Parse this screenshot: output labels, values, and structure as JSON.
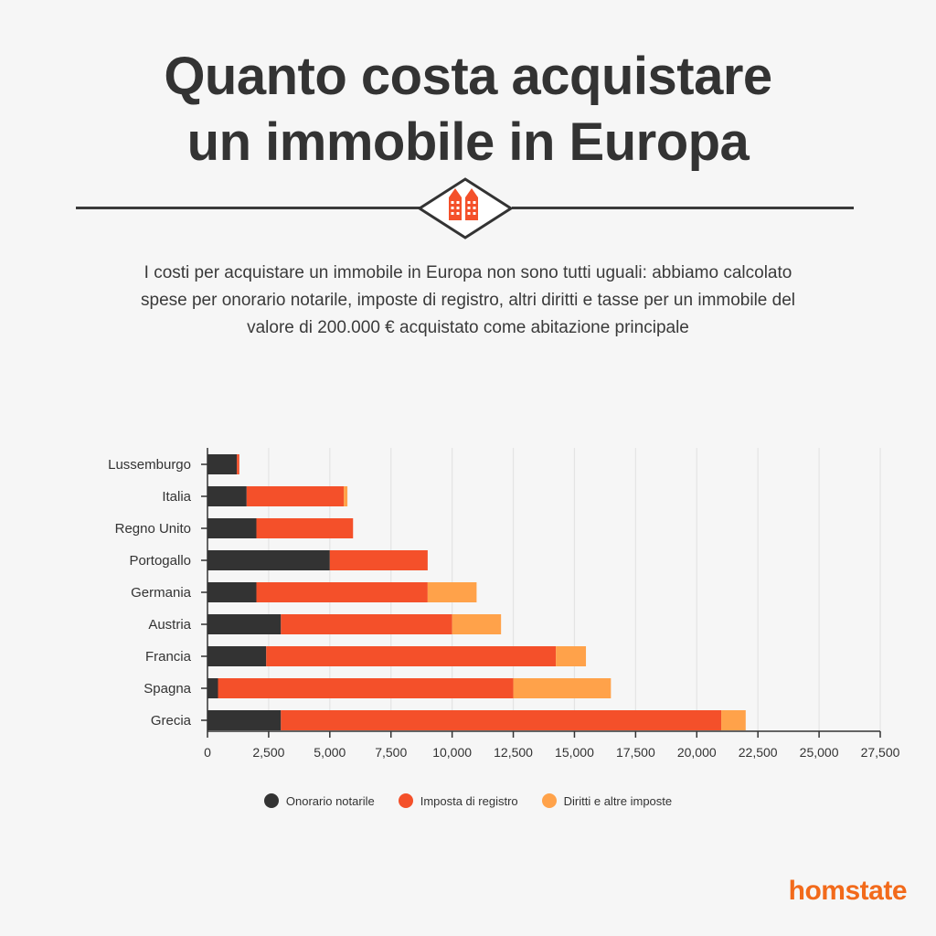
{
  "header": {
    "title_line1": "Quanto costa acquistare",
    "title_line2": "un immobile in Europa",
    "icon": "buildings-icon",
    "subtitle_line1": "I costi per acquistare un immobile in Europa non sono tutti uguali: abbiamo calcolato",
    "subtitle_line2": "spese per onorario notarile,  imposte  di registro, altri diritti e tasse per un immobile del",
    "subtitle_line3": "valore di 200.000 € acquistato come abitazione principale"
  },
  "colors": {
    "background": "#f6f6f6",
    "text": "#333333",
    "notary": "#333333",
    "registry": "#f4502a",
    "other": "#ffa24a",
    "brand": "#f26a1b",
    "grid": "#e4e4e4"
  },
  "chart_data": {
    "type": "bar",
    "orientation": "horizontal",
    "stacked": true,
    "categories": [
      "Lussemburgo",
      "Italia",
      "Regno Unito",
      "Portogallo",
      "Germania",
      "Austria",
      "Francia",
      "Spagna",
      "Grecia"
    ],
    "series": [
      {
        "name": "Onorario notarile",
        "values": [
          1200,
          1600,
          2000,
          5000,
          2000,
          3000,
          2400,
          430,
          3000
        ]
      },
      {
        "name": "Imposta di registro",
        "values": [
          100,
          3970,
          3950,
          4000,
          7000,
          7000,
          11840,
          12070,
          18000
        ]
      },
      {
        "name": "Diritti e altre imposte",
        "values": [
          0,
          150,
          0,
          0,
          2000,
          2000,
          1230,
          3990,
          1000
        ]
      }
    ],
    "xlim": [
      0,
      27500
    ],
    "xticks": [
      0,
      2500,
      5000,
      7500,
      10000,
      12500,
      15000,
      17500,
      20000,
      22500,
      25000,
      27500
    ],
    "xtick_labels": [
      "0",
      "2,500",
      "5,000",
      "7,500",
      "10,000",
      "12,500",
      "15,000",
      "17,500",
      "20,000",
      "22,500",
      "25,000",
      "27,500"
    ],
    "xlabel": "",
    "ylabel": "",
    "grid": true,
    "legend_position": "bottom-center"
  },
  "legend": {
    "items": [
      {
        "label": "Onorario notarile"
      },
      {
        "label": "Imposta di registro"
      },
      {
        "label": "Diritti e altre imposte"
      }
    ]
  },
  "brand": {
    "name": "homstate"
  }
}
